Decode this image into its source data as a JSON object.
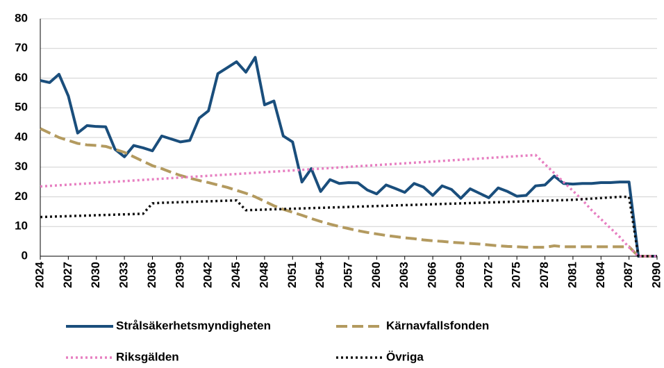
{
  "chart_data": {
    "type": "line",
    "x": [
      2024,
      2025,
      2026,
      2027,
      2028,
      2029,
      2030,
      2031,
      2032,
      2033,
      2034,
      2035,
      2036,
      2037,
      2038,
      2039,
      2040,
      2041,
      2042,
      2043,
      2044,
      2045,
      2046,
      2047,
      2048,
      2049,
      2050,
      2051,
      2052,
      2053,
      2054,
      2055,
      2056,
      2057,
      2058,
      2059,
      2060,
      2061,
      2062,
      2063,
      2064,
      2065,
      2066,
      2067,
      2068,
      2069,
      2070,
      2071,
      2072,
      2073,
      2074,
      2075,
      2076,
      2077,
      2078,
      2079,
      2080,
      2081,
      2082,
      2083,
      2084,
      2085,
      2086,
      2087,
      2088,
      2089,
      2090
    ],
    "xlim": [
      2024,
      2090
    ],
    "xticks": [
      2024,
      2027,
      2030,
      2033,
      2036,
      2039,
      2042,
      2045,
      2048,
      2051,
      2054,
      2057,
      2060,
      2063,
      2066,
      2069,
      2072,
      2075,
      2078,
      2081,
      2084,
      2087,
      2090
    ],
    "ylim": [
      0,
      80
    ],
    "yticks": [
      0,
      10,
      20,
      30,
      40,
      50,
      60,
      70,
      80
    ],
    "grid": true,
    "series": [
      {
        "name": "Strålsäkerhetsmyndigheten",
        "color": "#1a4e7c",
        "style": "solid",
        "values": [
          59.2,
          58.5,
          61.3,
          54,
          41.5,
          44,
          43.7,
          43.6,
          36,
          33.5,
          37.3,
          36.5,
          35.5,
          40.5,
          39.5,
          38.5,
          39,
          46.5,
          49,
          61.5,
          63.5,
          65.5,
          62,
          67,
          51,
          52.3,
          40.5,
          38.5,
          25,
          29.5,
          21.8,
          25.8,
          24.5,
          24.8,
          24.7,
          22.3,
          21,
          24,
          22.8,
          21.5,
          24.5,
          23.3,
          20.5,
          23.7,
          22.5,
          19.5,
          22.7,
          21.2,
          19.7,
          23,
          21.8,
          20.2,
          20.5,
          23.7,
          24,
          27,
          24.5,
          24.3,
          24.5,
          24.5,
          24.8,
          24.8,
          25,
          25,
          0,
          0,
          0
        ]
      },
      {
        "name": "Kärnavfallsfonden",
        "color": "#b39a5f",
        "style": "dashed",
        "values": [
          43,
          41.5,
          40,
          39,
          38,
          37.5,
          37.3,
          37,
          36,
          35,
          33.5,
          32,
          30.5,
          29.5,
          28.3,
          27.2,
          26.3,
          25.5,
          24.8,
          24,
          23.2,
          22.2,
          21.2,
          20,
          18.5,
          17,
          15.8,
          14.8,
          13.8,
          12.7,
          11.7,
          10.8,
          10,
          9.3,
          8.6,
          8,
          7.5,
          7,
          6.6,
          6.2,
          5.9,
          5.5,
          5.2,
          5,
          4.7,
          4.5,
          4.3,
          4.1,
          3.8,
          3.5,
          3.3,
          3.2,
          3,
          3,
          3,
          3.5,
          3.2,
          3.2,
          3.2,
          3.2,
          3.2,
          3.2,
          3.2,
          3.2,
          0,
          0,
          0
        ]
      },
      {
        "name": "Riksgälden",
        "color": "#e77fc1",
        "style": "dotted",
        "values": [
          23.5,
          23.7,
          23.9,
          24.1,
          24.3,
          24.5,
          24.7,
          24.9,
          25.1,
          25.3,
          25.5,
          25.7,
          25.9,
          26.1,
          26.3,
          26.5,
          26.7,
          26.9,
          27.1,
          27.3,
          27.5,
          27.7,
          27.9,
          28.1,
          28.3,
          28.5,
          28.7,
          28.9,
          29.1,
          29.3,
          29.5,
          29.7,
          29.9,
          30.1,
          30.3,
          30.5,
          30.7,
          30.9,
          31.1,
          31.3,
          31.5,
          31.7,
          31.9,
          32.1,
          32.3,
          32.5,
          32.7,
          32.9,
          33.1,
          33.3,
          33.5,
          33.7,
          33.9,
          34.1,
          31,
          28,
          25,
          22,
          19,
          15.5,
          12.5,
          9.5,
          6.5,
          3,
          0,
          0,
          0
        ]
      },
      {
        "name": "Övriga",
        "color": "#111111",
        "style": "dotted",
        "values": [
          13.2,
          13.3,
          13.4,
          13.5,
          13.6,
          13.7,
          13.8,
          13.9,
          14,
          14.1,
          14.2,
          14.3,
          17.8,
          18,
          18.1,
          18.2,
          18.3,
          18.4,
          18.5,
          18.6,
          18.7,
          18.8,
          15.5,
          15.6,
          15.7,
          15.8,
          15.9,
          16,
          16.1,
          16.2,
          16.3,
          16.4,
          16.5,
          16.6,
          16.7,
          16.8,
          16.9,
          17,
          17.1,
          17.2,
          17.3,
          17.4,
          17.5,
          17.6,
          17.7,
          17.8,
          17.9,
          18,
          18.1,
          18.2,
          18.3,
          18.4,
          18.5,
          18.6,
          18.7,
          18.8,
          18.9,
          19,
          19.2,
          19.4,
          19.6,
          19.8,
          20,
          20,
          0,
          0,
          0
        ]
      }
    ]
  }
}
